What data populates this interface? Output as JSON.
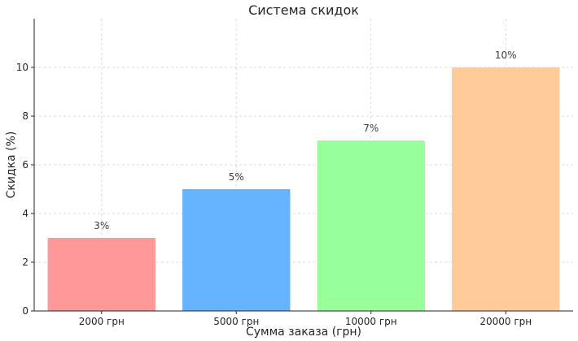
{
  "chart_data": {
    "type": "bar",
    "title": "Система скидок",
    "xlabel": "Сумма заказа (грн)",
    "ylabel": "Скидка (%)",
    "categories": [
      "2000 грн",
      "5000 грн",
      "10000 грн",
      "20000 грн"
    ],
    "values": [
      3,
      5,
      7,
      10
    ],
    "data_labels": [
      "3%",
      "5%",
      "7%",
      "10%"
    ],
    "colors": [
      "#ff9999",
      "#66b3ff",
      "#99ff99",
      "#ffcc99"
    ],
    "ylim": [
      0,
      12
    ],
    "yticks": [
      0,
      2,
      4,
      6,
      8,
      10
    ],
    "grid": true
  }
}
